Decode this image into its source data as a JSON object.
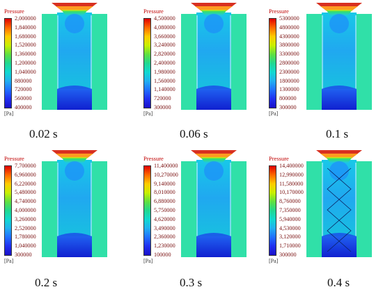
{
  "colorbar_title": "Pressure",
  "unit": "[Pa]",
  "panels": [
    {
      "caption": "0.02 s",
      "ticks": [
        "2,000000",
        "1,840000",
        "1,680000",
        "1,520000",
        "1,360000",
        "1,200000",
        "1,040000",
        "880000",
        "720000",
        "560000",
        "400000"
      ]
    },
    {
      "caption": "0.06 s",
      "ticks": [
        "4,500000",
        "4,080000",
        "3,660000",
        "3,240000",
        "2,820000",
        "2,400000",
        "1,980000",
        "1,560000",
        "1,140000",
        "720000",
        "300000"
      ]
    },
    {
      "caption": "0.1 s",
      "ticks": [
        "5300000",
        "4800000",
        "4300000",
        "3800000",
        "3300000",
        "2800000",
        "2300000",
        "1800000",
        "1300000",
        "800000",
        "300000"
      ]
    },
    {
      "caption": "0.2 s",
      "ticks": [
        "7,700000",
        "6,960000",
        "6,220000",
        "5,480000",
        "4,740000",
        "4,000000",
        "3,260000",
        "2,520000",
        "1,780000",
        "1,040000",
        "300000"
      ]
    },
    {
      "caption": "0.3 s",
      "ticks": [
        "11,400000",
        "10,270000",
        "9,140000",
        "8,010000",
        "6,880000",
        "5,750000",
        "4,620000",
        "3,490000",
        "2,360000",
        "1,230000",
        "100000"
      ]
    },
    {
      "caption": "0.4 s",
      "ticks": [
        "14,400000",
        "12,990000",
        "11,580000",
        "10,170000",
        "8,760000",
        "7,350000",
        "5,940000",
        "4,530000",
        "3,120000",
        "1,710000",
        "300000"
      ]
    }
  ]
}
